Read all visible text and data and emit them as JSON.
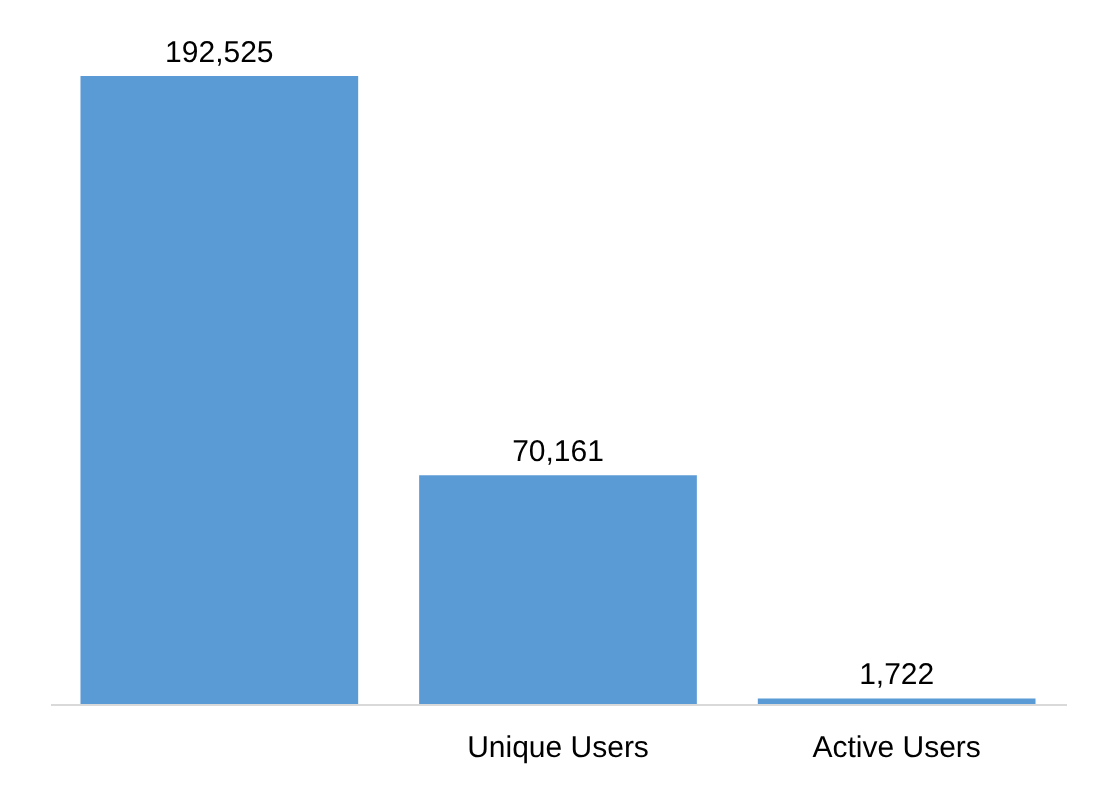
{
  "chart_data": {
    "type": "bar",
    "categories": [
      null,
      "Unique Users",
      "Active Users"
    ],
    "values": [
      192525,
      70161,
      1722
    ],
    "value_labels": [
      "192,525",
      "70,161",
      "1,722"
    ],
    "color": "#5b9bd5"
  }
}
